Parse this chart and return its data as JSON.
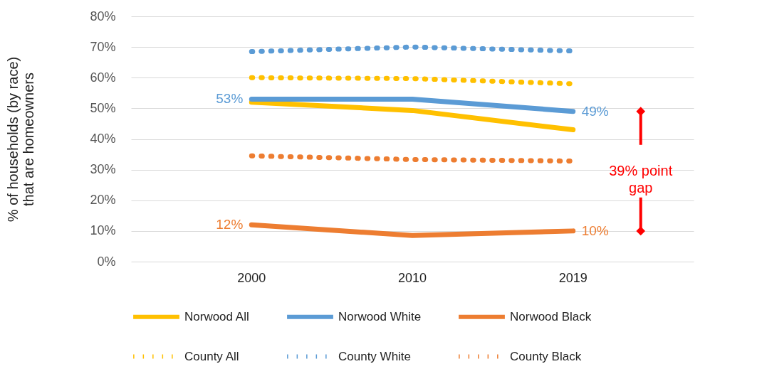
{
  "chart_data": {
    "type": "line",
    "ylabel": "% of households (by race)\nthat are homeowners",
    "categories": [
      "2000",
      "2010",
      "2019"
    ],
    "ylim": [
      0,
      80
    ],
    "yticks": [
      {
        "value": 0,
        "label": "0%"
      },
      {
        "value": 10,
        "label": "10%"
      },
      {
        "value": 20,
        "label": "20%"
      },
      {
        "value": 30,
        "label": "30%"
      },
      {
        "value": 40,
        "label": "40%"
      },
      {
        "value": 50,
        "label": "50%"
      },
      {
        "value": 60,
        "label": "60%"
      },
      {
        "value": 70,
        "label": "70%"
      },
      {
        "value": 80,
        "label": "80%"
      }
    ],
    "grid": "y",
    "legend": "bottom",
    "series": [
      {
        "name": "Norwood All",
        "color": "#ffc000",
        "line_style": "solid",
        "values": [
          52,
          49.3,
          43
        ]
      },
      {
        "name": "Norwood White",
        "color": "#5b9bd5",
        "line_style": "solid",
        "values": [
          53,
          53,
          49
        ],
        "value_labels": [
          "53%",
          null,
          "49%"
        ]
      },
      {
        "name": "Norwood Black",
        "color": "#ed7d31",
        "line_style": "solid",
        "values": [
          12,
          8.5,
          10
        ],
        "value_labels": [
          "12%",
          null,
          "10%"
        ]
      },
      {
        "name": "County All",
        "color": "#ffc000",
        "line_style": "dotted",
        "values": [
          60,
          59.7,
          58
        ]
      },
      {
        "name": "County White",
        "color": "#5b9bd5",
        "line_style": "dotted",
        "values": [
          68.5,
          70,
          68.7
        ]
      },
      {
        "name": "County Black",
        "color": "#ed7d31",
        "line_style": "dotted",
        "values": [
          34.5,
          33.3,
          32.8
        ]
      }
    ],
    "annotations": [
      "39% point gap"
    ]
  }
}
